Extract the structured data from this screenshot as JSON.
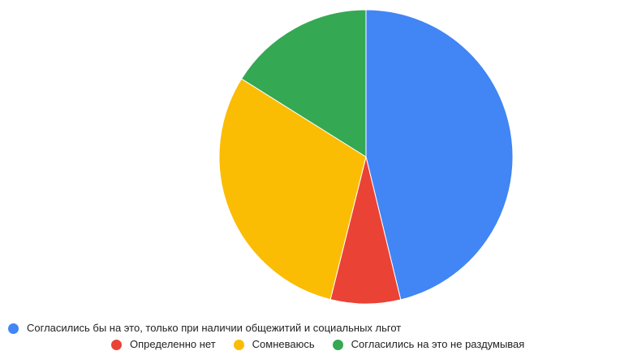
{
  "chart_data": {
    "type": "pie",
    "title": "",
    "start_angle_deg": 0,
    "direction": "clockwise",
    "legend_position": "bottom",
    "slices": [
      {
        "label": "Согласились бы на это, только при наличии общежитий и социальных льгот",
        "value": 46.2,
        "color": "#4285F4"
      },
      {
        "label": "Определенно нет",
        "value": 7.7,
        "color": "#EA4335"
      },
      {
        "label": "Сомневаюсь",
        "value": 30.0,
        "color": "#FBBC04"
      },
      {
        "label": "Согласились на это не раздумывая",
        "value": 16.1,
        "color": "#34A853"
      }
    ]
  }
}
